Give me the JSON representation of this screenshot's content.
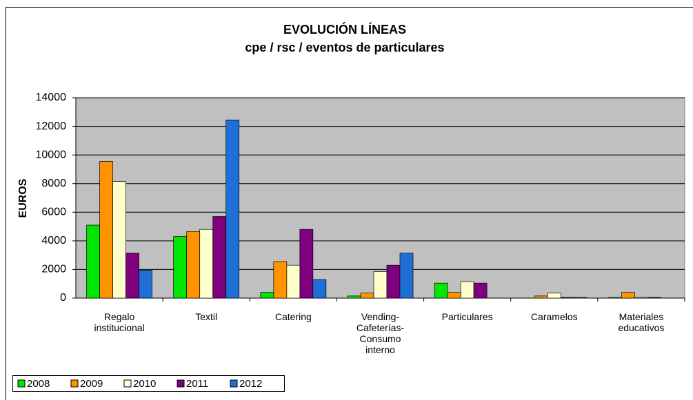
{
  "chart_data": {
    "type": "bar",
    "title": "EVOLUCIÓN LÍNEAS",
    "subtitle": "cpe / rsc / eventos de particulares",
    "y_label": "EUROS",
    "categories": [
      "Regalo institucional",
      "Textil",
      "Catering",
      "Vending-Cafeterías-Consumo interno",
      "Particulares",
      "Caramelos",
      "Materiales educativos"
    ],
    "series": [
      {
        "name": "2008",
        "color": "#00e600",
        "values": [
          5100,
          4300,
          400,
          150,
          1050,
          0,
          50
        ]
      },
      {
        "name": "2009",
        "color": "#ff9400",
        "values": [
          9550,
          4650,
          2550,
          350,
          400,
          150,
          400
        ]
      },
      {
        "name": "2010",
        "color": "#ffffcc",
        "values": [
          8150,
          4800,
          2300,
          1850,
          1150,
          350,
          50
        ]
      },
      {
        "name": "2011",
        "color": "#7f007f",
        "values": [
          3150,
          5700,
          4800,
          2300,
          1050,
          50,
          50
        ]
      },
      {
        "name": "2012",
        "color": "#1f6fd6",
        "values": [
          1950,
          12450,
          1300,
          3150,
          0,
          50,
          0
        ]
      }
    ],
    "ylim": [
      0,
      14000
    ],
    "yticks": [
      0,
      2000,
      4000,
      6000,
      8000,
      10000,
      12000,
      14000
    ],
    "grid": true,
    "legend": "bottom-left"
  }
}
